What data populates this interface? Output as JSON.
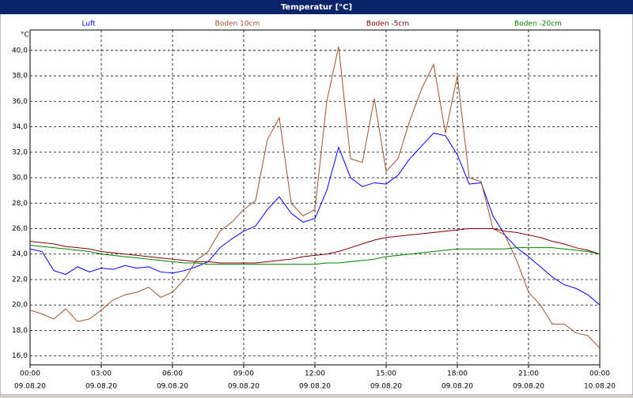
{
  "chart_data": {
    "type": "line",
    "title": "Temperatur [°C]",
    "y_unit": "°C",
    "x": [
      0,
      0.5,
      1,
      1.5,
      2,
      2.5,
      3,
      3.5,
      4,
      4.5,
      5,
      5.5,
      6,
      6.5,
      7,
      7.5,
      8,
      8.5,
      9,
      9.5,
      10,
      10.5,
      11,
      11.5,
      12,
      12.5,
      13,
      13.5,
      14,
      14.5,
      15,
      15.5,
      16,
      16.5,
      17,
      17.5,
      18,
      18.5,
      19,
      19.5,
      20,
      20.5,
      21,
      21.5,
      22,
      22.5,
      23,
      23.5,
      24
    ],
    "series": [
      {
        "name": "Luft",
        "color": "#0000ff",
        "values": [
          24.4,
          24.2,
          22.7,
          22.4,
          23.0,
          22.6,
          22.9,
          22.8,
          23.1,
          22.9,
          23.0,
          22.6,
          22.5,
          22.7,
          23.0,
          23.4,
          24.5,
          25.2,
          25.8,
          26.2,
          27.5,
          28.5,
          27.2,
          26.5,
          26.8,
          29.0,
          32.4,
          30.0,
          29.3,
          29.6,
          29.5,
          30.2,
          31.5,
          32.5,
          33.5,
          33.3,
          31.8,
          29.5,
          29.6,
          27.0,
          25.5,
          24.5,
          23.8,
          23.0,
          22.2,
          21.6,
          21.3,
          20.8,
          20.0
        ]
      },
      {
        "name": "Boden 10cm",
        "color": "#a0522d",
        "values": [
          19.6,
          19.3,
          18.9,
          19.7,
          18.7,
          18.9,
          19.6,
          20.4,
          20.8,
          21.0,
          21.4,
          20.6,
          21.0,
          22.0,
          23.5,
          24.2,
          25.8,
          26.5,
          27.5,
          28.2,
          33.0,
          34.7,
          28.0,
          27.0,
          27.5,
          36.0,
          40.3,
          31.5,
          31.2,
          36.2,
          30.5,
          31.5,
          34.5,
          37.0,
          38.9,
          33.5,
          38.0,
          30.0,
          29.7,
          26.0,
          25.5,
          23.5,
          21.0,
          20.0,
          18.5,
          18.5,
          17.8,
          17.6,
          16.6
        ]
      },
      {
        "name": "Boden -5cm",
        "color": "#800000",
        "values": [
          25.0,
          24.9,
          24.8,
          24.6,
          24.5,
          24.4,
          24.2,
          24.1,
          24.0,
          23.9,
          23.8,
          23.7,
          23.6,
          23.5,
          23.4,
          23.4,
          23.3,
          23.3,
          23.3,
          23.3,
          23.4,
          23.5,
          23.6,
          23.8,
          23.9,
          24.0,
          24.2,
          24.5,
          24.8,
          25.1,
          25.3,
          25.4,
          25.5,
          25.6,
          25.7,
          25.8,
          25.9,
          26.0,
          26.0,
          26.0,
          25.8,
          25.7,
          25.5,
          25.3,
          25.0,
          24.8,
          24.5,
          24.3,
          24.0
        ]
      },
      {
        "name": "Boden -20cm",
        "color": "#008000",
        "values": [
          24.7,
          24.6,
          24.5,
          24.4,
          24.3,
          24.2,
          24.0,
          23.9,
          23.8,
          23.7,
          23.6,
          23.5,
          23.4,
          23.3,
          23.3,
          23.2,
          23.2,
          23.2,
          23.2,
          23.2,
          23.2,
          23.2,
          23.2,
          23.2,
          23.2,
          23.3,
          23.3,
          23.4,
          23.5,
          23.6,
          23.8,
          23.9,
          24.0,
          24.1,
          24.2,
          24.3,
          24.4,
          24.4,
          24.4,
          24.4,
          24.4,
          24.5,
          24.5,
          24.5,
          24.5,
          24.4,
          24.3,
          24.2,
          24.0
        ]
      }
    ],
    "xlim": [
      0,
      24
    ],
    "xticks": [
      {
        "value": 0,
        "label": "00:00"
      },
      {
        "value": 3,
        "label": "03:00"
      },
      {
        "value": 6,
        "label": "06:00"
      },
      {
        "value": 9,
        "label": "09:00"
      },
      {
        "value": 12,
        "label": "12:00"
      },
      {
        "value": 15,
        "label": "15:00"
      },
      {
        "value": 18,
        "label": "18:00"
      },
      {
        "value": 21,
        "label": "21:00"
      },
      {
        "value": 24,
        "label": "00:00"
      }
    ],
    "xtick_sublabels": [
      "09.08.20",
      "09.08.20",
      "09.08.20",
      "09.08.20",
      "09.08.20",
      "09.08.20",
      "09.08.20",
      "09.08.20",
      "10.08.20"
    ],
    "ylim": [
      15.3,
      41.6
    ],
    "yticks": [
      {
        "value": 16,
        "label": "16,0"
      },
      {
        "value": 18,
        "label": "18,0"
      },
      {
        "value": 20,
        "label": "20,0"
      },
      {
        "value": 22,
        "label": "22,0"
      },
      {
        "value": 24,
        "label": "24,0"
      },
      {
        "value": 26,
        "label": "26,0"
      },
      {
        "value": 28,
        "label": "28,0"
      },
      {
        "value": 30,
        "label": "30,0"
      },
      {
        "value": 32,
        "label": "32,0"
      },
      {
        "value": 34,
        "label": "34,0"
      },
      {
        "value": 36,
        "label": "36,0"
      },
      {
        "value": 38,
        "label": "38,0"
      },
      {
        "value": 40,
        "label": "40,0"
      }
    ],
    "grid": true
  }
}
